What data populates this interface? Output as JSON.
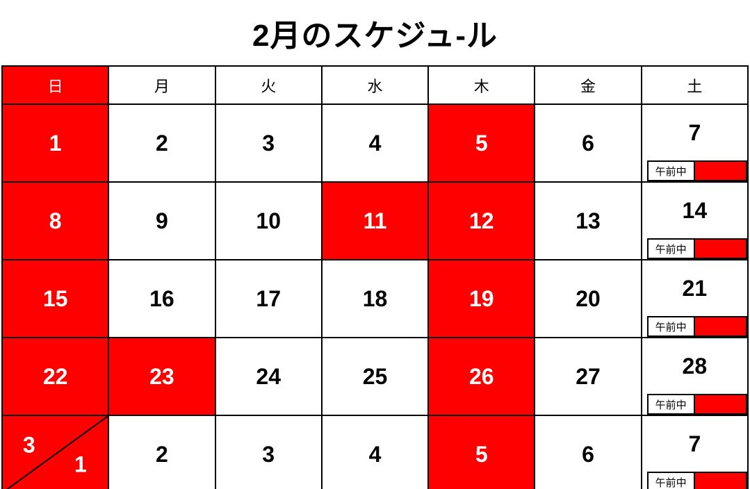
{
  "title": "2月のスケジュ-ル",
  "colors": {
    "highlight_red": "#FF0000",
    "grid_line": "#000000",
    "background": "#FFFFFF",
    "text_on_red": "#FFFFFF",
    "text_default": "#000000"
  },
  "weekday_header": [
    {
      "label": "日",
      "red": true
    },
    {
      "label": "月",
      "red": false
    },
    {
      "label": "火",
      "red": false
    },
    {
      "label": "水",
      "red": false
    },
    {
      "label": "木",
      "red": false
    },
    {
      "label": "金",
      "red": false
    },
    {
      "label": "土",
      "red": false
    }
  ],
  "weeks": [
    {
      "days": [
        {
          "type": "date",
          "day": "1",
          "red": true
        },
        {
          "type": "date",
          "day": "2",
          "red": false
        },
        {
          "type": "date",
          "day": "3",
          "red": false
        },
        {
          "type": "date",
          "day": "4",
          "red": false
        },
        {
          "type": "date",
          "day": "5",
          "red": true
        },
        {
          "type": "date",
          "day": "6",
          "red": false
        },
        {
          "type": "saturday",
          "day": "7",
          "red": false,
          "note": "午前中"
        }
      ]
    },
    {
      "days": [
        {
          "type": "date",
          "day": "8",
          "red": true
        },
        {
          "type": "date",
          "day": "9",
          "red": false
        },
        {
          "type": "date",
          "day": "10",
          "red": false
        },
        {
          "type": "date",
          "day": "11",
          "red": true
        },
        {
          "type": "date",
          "day": "12",
          "red": true
        },
        {
          "type": "date",
          "day": "13",
          "red": false
        },
        {
          "type": "saturday",
          "day": "14",
          "red": false,
          "note": "午前中"
        }
      ]
    },
    {
      "days": [
        {
          "type": "date",
          "day": "15",
          "red": true
        },
        {
          "type": "date",
          "day": "16",
          "red": false
        },
        {
          "type": "date",
          "day": "17",
          "red": false
        },
        {
          "type": "date",
          "day": "18",
          "red": false
        },
        {
          "type": "date",
          "day": "19",
          "red": true
        },
        {
          "type": "date",
          "day": "20",
          "red": false
        },
        {
          "type": "saturday",
          "day": "21",
          "red": false,
          "note": "午前中"
        }
      ]
    },
    {
      "days": [
        {
          "type": "date",
          "day": "22",
          "red": true
        },
        {
          "type": "date",
          "day": "23",
          "red": true
        },
        {
          "type": "date",
          "day": "24",
          "red": false
        },
        {
          "type": "date",
          "day": "25",
          "red": false
        },
        {
          "type": "date",
          "day": "26",
          "red": true
        },
        {
          "type": "date",
          "day": "27",
          "red": false
        },
        {
          "type": "saturday",
          "day": "28",
          "red": false,
          "note": "午前中"
        }
      ]
    },
    {
      "days": [
        {
          "type": "split",
          "month": "3",
          "day": "1",
          "red": true
        },
        {
          "type": "date",
          "day": "2",
          "red": false
        },
        {
          "type": "date",
          "day": "3",
          "red": false
        },
        {
          "type": "date",
          "day": "4",
          "red": false
        },
        {
          "type": "date",
          "day": "5",
          "red": true
        },
        {
          "type": "date",
          "day": "6",
          "red": false
        },
        {
          "type": "saturday",
          "day": "7",
          "red": false,
          "note": "午前中"
        }
      ]
    }
  ]
}
